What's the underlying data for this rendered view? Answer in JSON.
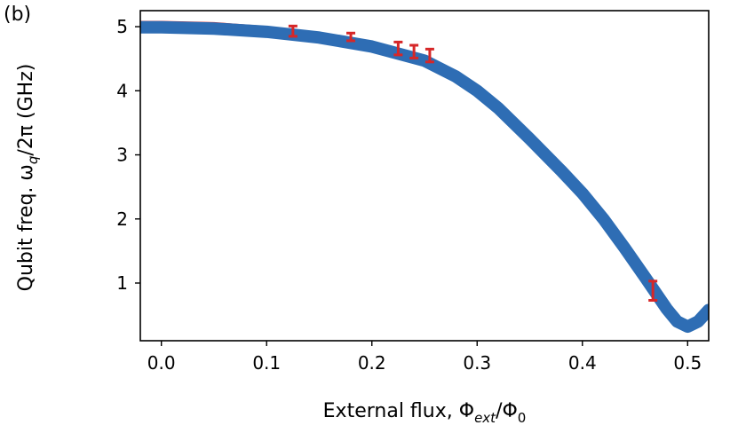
{
  "panel_label": "(b)",
  "chart_data": {
    "type": "scatter",
    "title": "",
    "xlabel_parts": [
      "External flux, Φ",
      "ext",
      "/Φ",
      "0"
    ],
    "ylabel_parts": [
      "Qubit freq. ω",
      "q",
      "/2π (GHz)"
    ],
    "xlim": [
      -0.02,
      0.52
    ],
    "ylim": [
      0.1,
      5.25
    ],
    "x_ticks": [
      0.0,
      0.1,
      0.2,
      0.3,
      0.4,
      0.5
    ],
    "x_tick_labels": [
      "0.0",
      "0.1",
      "0.2",
      "0.3",
      "0.4",
      "0.5"
    ],
    "y_ticks": [
      1,
      2,
      3,
      4,
      5
    ],
    "y_tick_labels": [
      "1",
      "2",
      "3",
      "4",
      "5"
    ],
    "grid": false,
    "series": [
      {
        "role": "fit-line",
        "color": "#d62728",
        "x": [
          -0.02,
          0.0,
          0.05,
          0.1,
          0.15,
          0.2,
          0.25,
          0.28,
          0.3,
          0.32,
          0.35,
          0.38,
          0.4,
          0.42,
          0.44,
          0.46,
          0.48,
          0.49,
          0.5,
          0.51,
          0.52
        ],
        "y": [
          5.05,
          5.05,
          5.03,
          4.97,
          4.87,
          4.72,
          4.5,
          4.27,
          4.05,
          3.78,
          3.3,
          2.8,
          2.45,
          2.05,
          1.6,
          1.12,
          0.62,
          0.42,
          0.33,
          0.42,
          0.6
        ]
      },
      {
        "role": "data-thick",
        "color": "#2e6db4",
        "x": [
          -0.02,
          0.0,
          0.05,
          0.1,
          0.15,
          0.2,
          0.25,
          0.28,
          0.3,
          0.32,
          0.35,
          0.38,
          0.4,
          0.42,
          0.44,
          0.46,
          0.48,
          0.49,
          0.5,
          0.51,
          0.52
        ],
        "y": [
          4.99,
          4.99,
          4.97,
          4.92,
          4.83,
          4.69,
          4.47,
          4.22,
          4.0,
          3.73,
          3.25,
          2.75,
          2.4,
          2.0,
          1.55,
          1.08,
          0.6,
          0.4,
          0.32,
          0.4,
          0.58
        ]
      },
      {
        "role": "error-bars",
        "color": "#d62728",
        "x": [
          0.125,
          0.18,
          0.225,
          0.24,
          0.255,
          0.467
        ],
        "y": [
          4.93,
          4.84,
          4.66,
          4.61,
          4.55,
          0.88
        ],
        "err": [
          0.08,
          0.06,
          0.1,
          0.1,
          0.1,
          0.15
        ]
      }
    ]
  }
}
